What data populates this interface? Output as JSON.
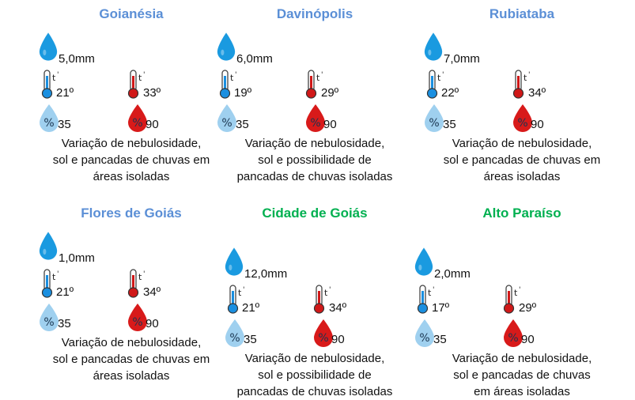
{
  "colors": {
    "blue_title": "#5b8fd6",
    "green_title": "#00b050",
    "rain_drop": "#1a9ae0",
    "humidity_low": "#9fd0ef",
    "humidity_high": "#d81a1a",
    "thermo_min": "#1a8fe0",
    "thermo_max": "#d01818"
  },
  "icons": {
    "rain": "water-drop-icon",
    "min_temp": "thermometer-low-icon",
    "max_temp": "thermometer-high-icon",
    "min_humidity": "humidity-low-icon",
    "max_humidity": "humidity-high-icon"
  },
  "cities": [
    {
      "name": "Goianésia",
      "title_color": "blue",
      "rain": "5,0mm",
      "temp_min": "21º",
      "temp_max": "33º",
      "hum_min": "35",
      "hum_max": "90",
      "desc": [
        "Variação de nebulosidade,",
        "sol e pancadas de chuvas em",
        "áreas isoladas"
      ]
    },
    {
      "name": "Davinópolis",
      "title_color": "blue",
      "rain": "6,0mm",
      "temp_min": "19º",
      "temp_max": "29º",
      "hum_min": "35",
      "hum_max": "90",
      "desc": [
        "Variação de nebulosidade,",
        "sol e possibilidade de",
        "pancadas de chuvas isoladas"
      ]
    },
    {
      "name": "Rubiataba",
      "title_color": "blue",
      "rain": "7,0mm",
      "temp_min": "22º",
      "temp_max": "34º",
      "hum_min": "35",
      "hum_max": "90",
      "desc": [
        "Variação de nebulosidade,",
        "sol e pancadas de chuvas em",
        "áreas isoladas"
      ]
    },
    {
      "name": "Flores de Goiás",
      "title_color": "blue",
      "rain": "1,0mm",
      "temp_min": "21º",
      "temp_max": "34º",
      "hum_min": "35",
      "hum_max": "90",
      "desc": [
        "Variação de nebulosidade,",
        "sol e pancadas de chuvas em",
        "áreas isoladas"
      ]
    },
    {
      "name": "Cidade de Goiás",
      "title_color": "green",
      "rain": "12,0mm",
      "temp_min": "21º",
      "temp_max": "34º",
      "hum_min": "35",
      "hum_max": "90",
      "desc": [
        "Variação de nebulosidade,",
        "sol e possibilidade de",
        "pancadas de chuvas isoladas"
      ]
    },
    {
      "name": "Alto Paraíso",
      "title_color": "green",
      "rain": "2,0mm",
      "temp_min": "17º",
      "temp_max": "29º",
      "hum_min": "35",
      "hum_max": "90",
      "desc": [
        "Variação de nebulosidade,",
        "sol e pancadas de chuvas",
        "em áreas isoladas"
      ]
    }
  ]
}
